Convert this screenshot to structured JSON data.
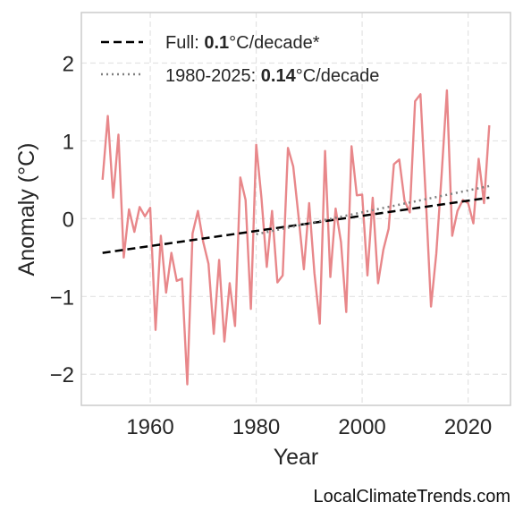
{
  "chart_data": {
    "type": "line",
    "xlabel": "Year",
    "ylabel": "Anomaly (°C)",
    "xlim": [
      1947,
      2028
    ],
    "ylim": [
      -2.4,
      2.65
    ],
    "x_ticks": [
      1960,
      1980,
      2000,
      2020
    ],
    "y_ticks": [
      -2,
      -1,
      0,
      1,
      2
    ],
    "y_tick_labels": [
      "−2",
      "−1",
      "0",
      "1",
      "2"
    ],
    "grid": true,
    "legend_position": "top-left",
    "series": [
      {
        "style": "solid",
        "color": "#e8878a",
        "x": [
          1951,
          1952,
          1953,
          1954,
          1955,
          1956,
          1957,
          1958,
          1959,
          1960,
          1961,
          1962,
          1963,
          1964,
          1965,
          1966,
          1967,
          1968,
          1969,
          1970,
          1971,
          1972,
          1973,
          1974,
          1975,
          1976,
          1977,
          1978,
          1979,
          1980,
          1981,
          1982,
          1983,
          1984,
          1985,
          1986,
          1987,
          1988,
          1989,
          1990,
          1991,
          1992,
          1993,
          1994,
          1995,
          1996,
          1997,
          1998,
          1999,
          2000,
          2001,
          2002,
          2003,
          2004,
          2005,
          2006,
          2007,
          2008,
          2009,
          2010,
          2011,
          2012,
          2013,
          2014,
          2015,
          2016,
          2017,
          2018,
          2019,
          2020,
          2021,
          2022,
          2023,
          2024
        ],
        "y": [
          0.5,
          1.32,
          0.27,
          1.08,
          -0.5,
          0.12,
          -0.17,
          0.15,
          0.03,
          0.14,
          -1.43,
          -0.22,
          -0.95,
          -0.44,
          -0.8,
          -0.77,
          -2.13,
          -0.19,
          0.1,
          -0.3,
          -0.58,
          -1.48,
          -0.53,
          -1.58,
          -0.83,
          -1.38,
          0.53,
          0.24,
          -1.16,
          0.95,
          0.26,
          -0.62,
          0.1,
          -0.82,
          -0.73,
          0.91,
          0.67,
          0.02,
          -0.65,
          0.2,
          -0.7,
          -1.35,
          0.87,
          -0.75,
          0.13,
          -0.3,
          -1.2,
          0.93,
          0.3,
          0.31,
          -0.73,
          0.27,
          -0.83,
          -0.4,
          -0.13,
          0.7,
          0.76,
          0.23,
          0.08,
          1.51,
          1.6,
          0.28,
          -1.13,
          -0.45,
          0.57,
          1.65,
          -0.22,
          0.1,
          0.24,
          0.2,
          -0.06,
          0.77,
          0.2,
          1.2
        ]
      },
      {
        "name": "Full",
        "style": "dashed",
        "color": "#000000",
        "x": [
          1951,
          2024
        ],
        "y": [
          -0.44,
          0.27
        ]
      },
      {
        "name": "1980-2025",
        "style": "dotted",
        "color": "#808080",
        "x": [
          1980,
          2024
        ],
        "y": [
          -0.2,
          0.42
        ]
      }
    ],
    "legend": [
      {
        "prefix": "Full: ",
        "value": "0.1",
        "suffix": "°C/decade*",
        "style": "dashed",
        "color": "#000000"
      },
      {
        "prefix": "1980-2025: ",
        "value": "0.14",
        "suffix": "°C/decade",
        "style": "dotted",
        "color": "#808080"
      }
    ]
  },
  "credit": "LocalClimateTrends.com"
}
